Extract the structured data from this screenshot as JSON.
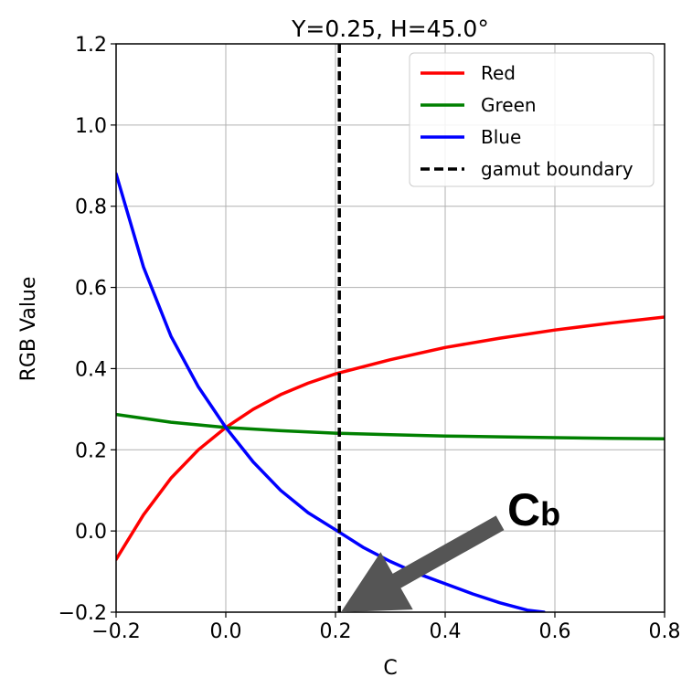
{
  "chart_data": {
    "type": "line",
    "title": "Y=0.25, H=45.0°",
    "xlabel": "C",
    "ylabel": "RGB Value",
    "xlim": [
      -0.2,
      0.8
    ],
    "ylim": [
      -0.2,
      1.2
    ],
    "grid": true,
    "legend_position": "top-right",
    "xticks": [
      -0.2,
      0.0,
      0.2,
      0.4,
      0.6,
      0.8
    ],
    "yticks": [
      -0.2,
      0.0,
      0.2,
      0.4,
      0.6,
      0.8,
      1.0,
      1.2
    ],
    "xtick_labels": [
      "−0.2",
      "0.0",
      "0.2",
      "0.4",
      "0.6",
      "0.8"
    ],
    "ytick_labels": [
      "−0.2",
      "0.0",
      "0.2",
      "0.4",
      "0.6",
      "0.8",
      "1.0",
      "1.2"
    ],
    "series": [
      {
        "name": "Red",
        "color": "#ff0000",
        "x": [
          -0.2,
          -0.15,
          -0.1,
          -0.05,
          0.0,
          0.05,
          0.1,
          0.15,
          0.2,
          0.3,
          0.4,
          0.5,
          0.6,
          0.7,
          0.8
        ],
        "y": [
          -0.07,
          0.04,
          0.13,
          0.2,
          0.255,
          0.3,
          0.336,
          0.364,
          0.387,
          0.422,
          0.452,
          0.475,
          0.495,
          0.512,
          0.527
        ]
      },
      {
        "name": "Green",
        "color": "#008000",
        "x": [
          -0.2,
          -0.1,
          0.0,
          0.1,
          0.2,
          0.3,
          0.4,
          0.5,
          0.6,
          0.7,
          0.8
        ],
        "y": [
          0.287,
          0.268,
          0.255,
          0.247,
          0.241,
          0.237,
          0.234,
          0.232,
          0.23,
          0.228,
          0.227
        ]
      },
      {
        "name": "Blue",
        "color": "#0000ff",
        "x": [
          -0.2,
          -0.15,
          -0.1,
          -0.05,
          0.0,
          0.05,
          0.1,
          0.15,
          0.2,
          0.25,
          0.3,
          0.35,
          0.4,
          0.45,
          0.5,
          0.55,
          0.58
        ],
        "y": [
          0.88,
          0.65,
          0.48,
          0.355,
          0.255,
          0.17,
          0.1,
          0.045,
          0.003,
          -0.04,
          -0.075,
          -0.105,
          -0.13,
          -0.155,
          -0.177,
          -0.195,
          -0.2
        ]
      }
    ],
    "vlines": [
      {
        "name": "gamut boundary",
        "x": 0.207,
        "color": "#000000",
        "style": "dashed"
      }
    ],
    "legend": [
      "Red",
      "Green",
      "Blue",
      "gamut boundary"
    ],
    "annotation": {
      "text_main": "C",
      "text_sub": "b",
      "arrow_from": [
        0.5,
        0.02
      ],
      "arrow_to": [
        0.21,
        -0.2
      ],
      "arrow_color": "#555555"
    }
  }
}
